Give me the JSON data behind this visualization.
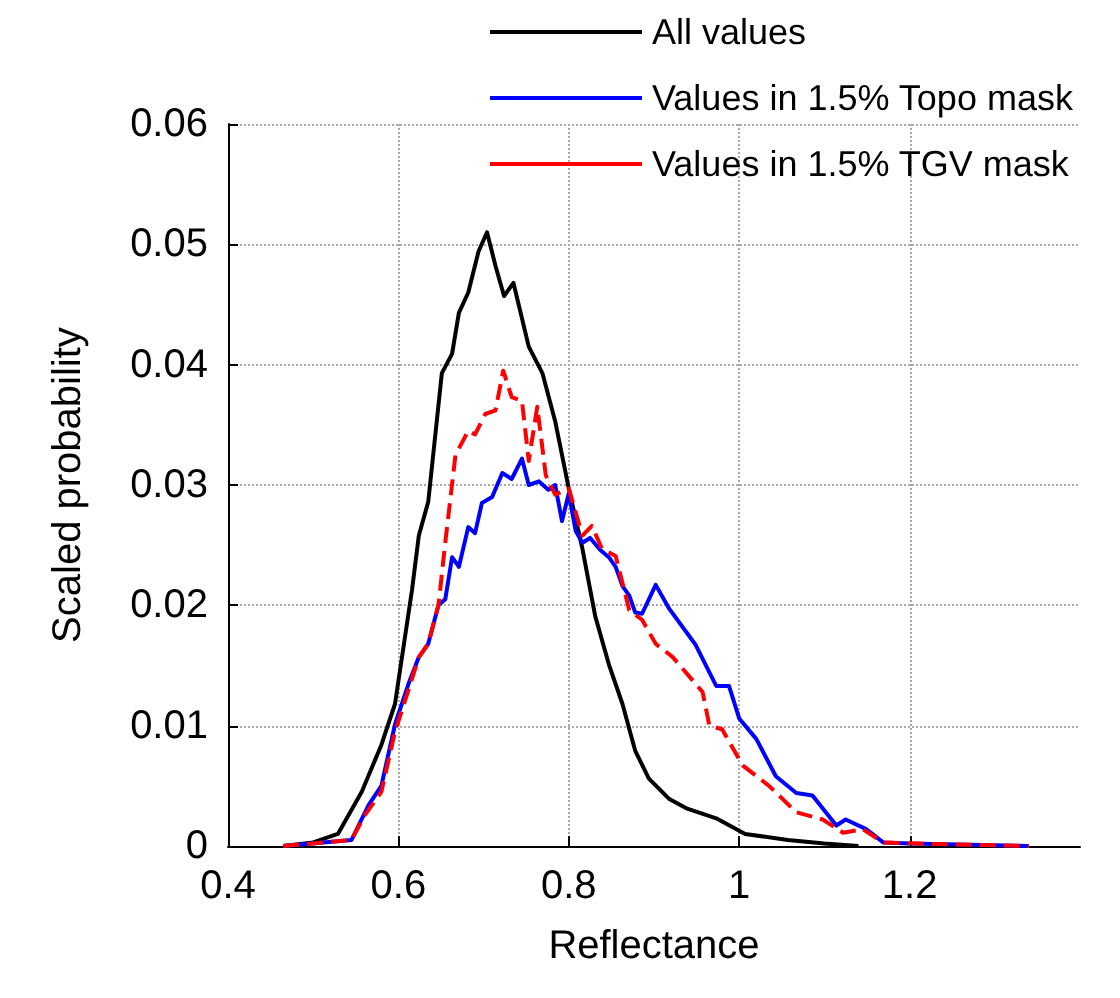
{
  "chart_data": {
    "type": "line",
    "xlabel": "Reflectance",
    "ylabel": "Scaled probability",
    "xlim": [
      0.4,
      1.4
    ],
    "xticks": [
      0.4,
      0.6,
      0.8,
      1,
      1.2
    ],
    "ylim": [
      0,
      0.06
    ],
    "yticks": [
      0,
      0.01,
      0.02,
      0.03,
      0.04,
      0.05,
      0.06
    ],
    "grid": true,
    "legend": "top right",
    "marker": "none",
    "series": [
      {
        "name": "All values",
        "color": "#000000",
        "line_style": "solid",
        "x": [
          0.465,
          0.5,
          0.529,
          0.557,
          0.58,
          0.596,
          0.616,
          0.624,
          0.635,
          0.651,
          0.663,
          0.671,
          0.682,
          0.694,
          0.704,
          0.714,
          0.724,
          0.735,
          0.753,
          0.769,
          0.784,
          0.8,
          0.816,
          0.831,
          0.847,
          0.863,
          0.878,
          0.894,
          0.918,
          0.939,
          0.973,
          1.007,
          1.057,
          1.1,
          1.14
        ],
        "values": [
          0,
          0.0003,
          0.001,
          0.0045,
          0.0084,
          0.0118,
          0.0213,
          0.0258,
          0.0286,
          0.0393,
          0.0409,
          0.0443,
          0.046,
          0.0494,
          0.051,
          0.0482,
          0.0457,
          0.0468,
          0.0415,
          0.0393,
          0.0353,
          0.0297,
          0.0247,
          0.0191,
          0.0151,
          0.0118,
          0.0079,
          0.0056,
          0.0039,
          0.0031,
          0.0023,
          0.001,
          0.0005,
          0.0002,
          0
        ]
      },
      {
        "name": "Values in 1.5% Topo mask",
        "color": "#0000ff",
        "line_style": "solid",
        "x": [
          0.465,
          0.545,
          0.565,
          0.58,
          0.596,
          0.612,
          0.624,
          0.635,
          0.647,
          0.655,
          0.663,
          0.671,
          0.682,
          0.69,
          0.698,
          0.71,
          0.722,
          0.733,
          0.745,
          0.753,
          0.765,
          0.776,
          0.784,
          0.792,
          0.8,
          0.808,
          0.816,
          0.825,
          0.837,
          0.847,
          0.855,
          0.863,
          0.871,
          0.878,
          0.886,
          0.902,
          0.918,
          0.949,
          0.973,
          0.988,
          1.0,
          1.02,
          1.043,
          1.067,
          1.086,
          1.114,
          1.125,
          1.149,
          1.169,
          1.2,
          1.34
        ],
        "values": [
          0,
          0.0005,
          0.0034,
          0.005,
          0.0101,
          0.0135,
          0.0157,
          0.0168,
          0.02,
          0.0205,
          0.024,
          0.0232,
          0.0265,
          0.026,
          0.0285,
          0.029,
          0.031,
          0.0305,
          0.0322,
          0.03,
          0.0303,
          0.0296,
          0.03,
          0.027,
          0.0293,
          0.0262,
          0.0252,
          0.0256,
          0.0246,
          0.024,
          0.0232,
          0.0216,
          0.0208,
          0.0194,
          0.0193,
          0.0217,
          0.0197,
          0.0167,
          0.0133,
          0.0133,
          0.0106,
          0.0089,
          0.0058,
          0.0044,
          0.0042,
          0.0017,
          0.0022,
          0.0014,
          0.0003,
          0.0002,
          0
        ]
      },
      {
        "name": "Values in 1.5% TGV mask",
        "color": "#ff0000",
        "line_style": "dashed",
        "x": [
          0.465,
          0.545,
          0.56,
          0.58,
          0.596,
          0.612,
          0.624,
          0.635,
          0.647,
          0.655,
          0.667,
          0.682,
          0.69,
          0.702,
          0.714,
          0.723,
          0.733,
          0.745,
          0.753,
          0.763,
          0.773,
          0.784,
          0.8,
          0.816,
          0.827,
          0.839,
          0.855,
          0.871,
          0.886,
          0.902,
          0.922,
          0.957,
          0.965,
          0.98,
          1.004,
          1.035,
          1.067,
          1.098,
          1.122,
          1.145,
          1.169,
          1.21,
          1.34
        ],
        "values": [
          0,
          0.0005,
          0.0025,
          0.0045,
          0.0095,
          0.013,
          0.0157,
          0.0168,
          0.02,
          0.0252,
          0.0325,
          0.0345,
          0.0342,
          0.0359,
          0.0362,
          0.0395,
          0.0373,
          0.037,
          0.032,
          0.0365,
          0.0308,
          0.0292,
          0.0297,
          0.0258,
          0.0266,
          0.0247,
          0.0241,
          0.0196,
          0.0188,
          0.0168,
          0.0157,
          0.0128,
          0.01,
          0.0097,
          0.0067,
          0.005,
          0.0028,
          0.0022,
          0.0011,
          0.0014,
          0.0003,
          0.0002,
          0
        ]
      }
    ]
  }
}
